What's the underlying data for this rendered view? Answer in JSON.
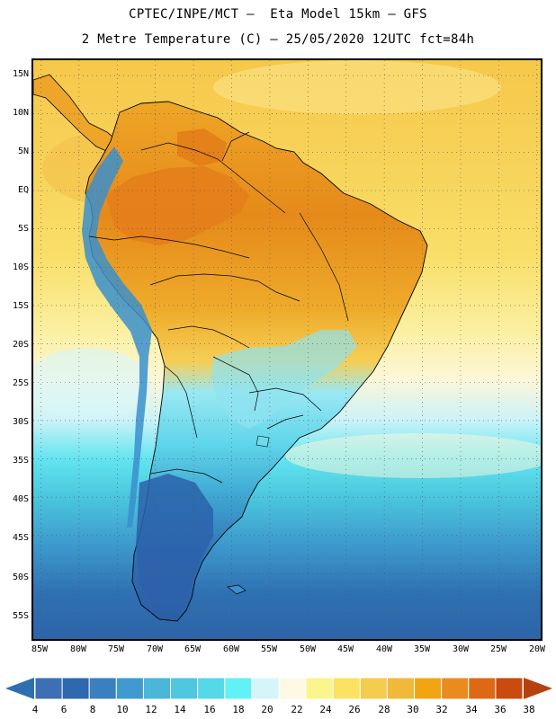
{
  "header": {
    "line1": "CPTEC/INPE/MCT –  Eta Model 15km – GFS",
    "line2": "2 Metre Temperature (C) – 25/05/2020 12UTC fct=84h"
  },
  "map": {
    "lat_labels": [
      "15N",
      "10N",
      "5N",
      "EQ",
      "5S",
      "10S",
      "15S",
      "20S",
      "25S",
      "30S",
      "35S",
      "40S",
      "45S",
      "50S",
      "55S"
    ],
    "lon_labels": [
      "85W",
      "80W",
      "75W",
      "70W",
      "65W",
      "60W",
      "55W",
      "50W",
      "45W",
      "40W",
      "35W",
      "30W",
      "25W",
      "20W"
    ],
    "extent": {
      "lon_min": -86,
      "lon_max": -19.5,
      "lat_min": -58.5,
      "lat_max": 17
    }
  },
  "colorbar": {
    "labels": [
      "4",
      "6",
      "8",
      "10",
      "12",
      "14",
      "16",
      "18",
      "20",
      "22",
      "24",
      "26",
      "28",
      "30",
      "32",
      "34",
      "36",
      "38"
    ],
    "colors": [
      "#3c6fb4",
      "#2e68ae",
      "#3a80c0",
      "#3f9bcf",
      "#4ab6d8",
      "#4fc8df",
      "#55d8e8",
      "#62f2f6",
      "#d4f6fb",
      "#fdf9e3",
      "#fcf48c",
      "#fbe262",
      "#f4cc4e",
      "#f0b93a",
      "#f3a413",
      "#ea8b1e",
      "#de6914",
      "#cb4a10"
    ],
    "under_color": "#2d6fb0",
    "over_color": "#b7410e"
  }
}
